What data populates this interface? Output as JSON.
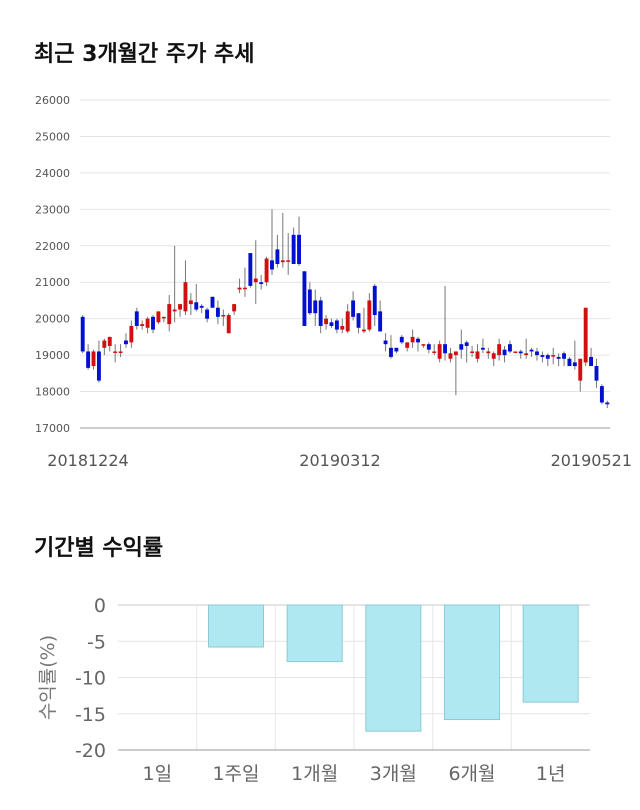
{
  "section1": {
    "title": "최근 3개월간 주가 추세"
  },
  "section2": {
    "title": "기간별 수익률"
  },
  "chart_data": [
    {
      "type": "candlestick",
      "title": "최근 3개월간 주가 추세",
      "ylim": [
        17000,
        26000
      ],
      "y_ticks": [
        17000,
        18000,
        19000,
        20000,
        21000,
        22000,
        23000,
        24000,
        25000,
        26000
      ],
      "x_tick_labels": [
        "20181224",
        "20190312",
        "20190521"
      ],
      "grid": true,
      "colors": {
        "up": "#d01010",
        "down": "#0010d0",
        "wick": "#777777"
      },
      "candles": [
        [
          20050,
          20100,
          19050,
          19100
        ],
        [
          19100,
          19300,
          18600,
          18650
        ],
        [
          18700,
          19150,
          18600,
          19100
        ],
        [
          19100,
          19400,
          18250,
          18300
        ],
        [
          19200,
          19450,
          19000,
          19400
        ],
        [
          19250,
          19500,
          19100,
          19500
        ],
        [
          19100,
          19300,
          18800,
          19100
        ],
        [
          19100,
          19300,
          18950,
          19100
        ],
        [
          19400,
          19600,
          19200,
          19300
        ],
        [
          19350,
          19950,
          19200,
          19800
        ],
        [
          20200,
          20300,
          19700,
          19800
        ],
        [
          19800,
          19950,
          19700,
          19850
        ],
        [
          19750,
          20050,
          19600,
          20000
        ],
        [
          20050,
          20100,
          19600,
          19700
        ],
        [
          19900,
          20200,
          19850,
          20200
        ],
        [
          20050,
          20050,
          19900,
          20050
        ],
        [
          19850,
          20650,
          19650,
          20400
        ],
        [
          20200,
          22000,
          19900,
          20250
        ],
        [
          20250,
          20400,
          20050,
          20400
        ],
        [
          20200,
          21600,
          20100,
          21000
        ],
        [
          20400,
          20700,
          20100,
          20500
        ],
        [
          20450,
          20950,
          20200,
          20250
        ],
        [
          20350,
          20400,
          20150,
          20300
        ],
        [
          20250,
          20300,
          19900,
          20000
        ],
        [
          20600,
          20600,
          20300,
          20300
        ],
        [
          20300,
          20500,
          19850,
          20050
        ],
        [
          20100,
          20250,
          19800,
          20100
        ],
        [
          19600,
          20150,
          19600,
          20100
        ],
        [
          20200,
          20400,
          20100,
          20400
        ],
        [
          20800,
          21100,
          20700,
          20850
        ],
        [
          20850,
          21400,
          20600,
          20850
        ],
        [
          21800,
          21800,
          20850,
          20900
        ],
        [
          21000,
          22150,
          20400,
          21100
        ],
        [
          21000,
          21200,
          20800,
          20950
        ],
        [
          21000,
          21700,
          20900,
          21650
        ],
        [
          21600,
          23000,
          21200,
          21350
        ],
        [
          21900,
          22300,
          21400,
          21500
        ],
        [
          21550,
          22900,
          21400,
          21600
        ],
        [
          21600,
          22350,
          21200,
          21600
        ],
        [
          22300,
          22500,
          21500,
          21500
        ],
        [
          22300,
          22800,
          21450,
          21500
        ],
        [
          21300,
          21300,
          19800,
          19800
        ],
        [
          20800,
          21000,
          20100,
          20150
        ],
        [
          20500,
          20800,
          19800,
          20150
        ],
        [
          20500,
          20600,
          19600,
          19800
        ],
        [
          19850,
          20100,
          19700,
          20000
        ],
        [
          19900,
          20000,
          19750,
          19800
        ],
        [
          19950,
          20000,
          19600,
          19700
        ],
        [
          19700,
          20000,
          19600,
          19800
        ],
        [
          19650,
          20400,
          19600,
          20200
        ],
        [
          20500,
          20750,
          19950,
          20050
        ],
        [
          20150,
          20150,
          19600,
          19750
        ],
        [
          19650,
          20300,
          19600,
          19700
        ],
        [
          19700,
          20700,
          19650,
          20500
        ],
        [
          20900,
          20950,
          19800,
          20100
        ],
        [
          20200,
          20500,
          19650,
          19650
        ],
        [
          19400,
          19600,
          19100,
          19300
        ],
        [
          19200,
          19550,
          18900,
          18950
        ],
        [
          19200,
          19200,
          19050,
          19100
        ],
        [
          19500,
          19550,
          19300,
          19350
        ],
        [
          19200,
          19350,
          19100,
          19350
        ],
        [
          19350,
          19700,
          19200,
          19500
        ],
        [
          19450,
          19500,
          19100,
          19350
        ],
        [
          19300,
          19300,
          19200,
          19300
        ],
        [
          19300,
          19350,
          19050,
          19150
        ],
        [
          19100,
          19300,
          19000,
          19100
        ],
        [
          18900,
          19400,
          18800,
          19300
        ],
        [
          19300,
          20900,
          18850,
          19050
        ],
        [
          18900,
          19200,
          18800,
          19050
        ],
        [
          19000,
          19100,
          17900,
          19100
        ],
        [
          19300,
          19700,
          18900,
          19150
        ],
        [
          19350,
          19400,
          18800,
          19250
        ],
        [
          19100,
          19250,
          18950,
          19100
        ],
        [
          18900,
          19300,
          18800,
          19100
        ],
        [
          19200,
          19450,
          19050,
          19150
        ],
        [
          19050,
          19200,
          18900,
          19100
        ],
        [
          18900,
          19100,
          18700,
          19050
        ],
        [
          19000,
          19450,
          18850,
          19300
        ],
        [
          19150,
          19250,
          18800,
          19000
        ],
        [
          19300,
          19400,
          19050,
          19100
        ],
        [
          19100,
          19100,
          19050,
          19100
        ],
        [
          19100,
          19150,
          18900,
          19050
        ],
        [
          19000,
          19450,
          18900,
          19050
        ],
        [
          19150,
          19200,
          18950,
          19100
        ],
        [
          19100,
          19200,
          18850,
          19000
        ],
        [
          19000,
          19100,
          18800,
          18950
        ],
        [
          19000,
          19050,
          18700,
          18900
        ],
        [
          19000,
          19200,
          18750,
          19000
        ],
        [
          18950,
          19050,
          18700,
          18900
        ],
        [
          19050,
          19100,
          18700,
          18900
        ],
        [
          18900,
          18950,
          18700,
          18700
        ],
        [
          18800,
          19400,
          18600,
          18700
        ],
        [
          18300,
          18900,
          18000,
          18900
        ],
        [
          18800,
          20300,
          18700,
          20300
        ],
        [
          18950,
          19200,
          18700,
          18700
        ],
        [
          18700,
          18900,
          18100,
          18300
        ],
        [
          18150,
          18200,
          17650,
          17700
        ],
        [
          17700,
          17750,
          17550,
          17650
        ]
      ]
    },
    {
      "type": "bar",
      "title": "기간별 수익률",
      "ylabel": "수익률(%)",
      "ylim": [
        -20,
        0
      ],
      "y_ticks": [
        0,
        -5,
        -10,
        -15,
        -20
      ],
      "categories": [
        "1일",
        "1주일",
        "1개월",
        "3개월",
        "6개월",
        "1년"
      ],
      "values": [
        0,
        -5.8,
        -7.8,
        -17.4,
        -15.8,
        -13.4
      ],
      "colors": {
        "bar": "#b0e8f2",
        "bar_border": "#8ccad6"
      }
    }
  ]
}
